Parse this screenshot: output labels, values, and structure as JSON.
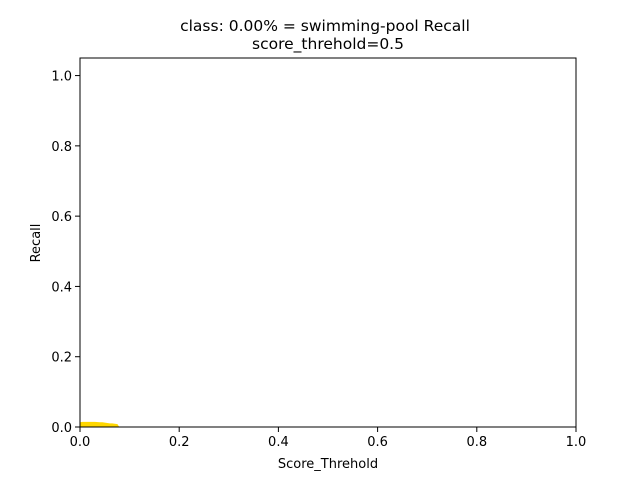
{
  "chart_data": {
    "type": "area",
    "title_line1": "class: 0.00% = swimming-pool Recall",
    "title_line2": "score_threhold=0.5",
    "xlabel": "Score_Threhold",
    "ylabel": "Recall",
    "xlim": [
      0.0,
      1.0
    ],
    "ylim": [
      0.0,
      1.05
    ],
    "xticks": [
      "0.0",
      "0.2",
      "0.4",
      "0.6",
      "0.8",
      "1.0"
    ],
    "yticks": [
      "0.0",
      "0.2",
      "0.4",
      "0.6",
      "0.8",
      "1.0"
    ],
    "grid": false,
    "series": [
      {
        "color": "#ffd700",
        "x": [
          0.0,
          0.005,
          0.01,
          0.02,
          0.03,
          0.04,
          0.045,
          0.05,
          0.055,
          0.06,
          0.065,
          0.07,
          0.075,
          0.078
        ],
        "y": [
          0.012,
          0.013,
          0.013,
          0.013,
          0.013,
          0.012,
          0.012,
          0.011,
          0.01,
          0.009,
          0.009,
          0.008,
          0.007,
          0.0
        ]
      }
    ]
  }
}
